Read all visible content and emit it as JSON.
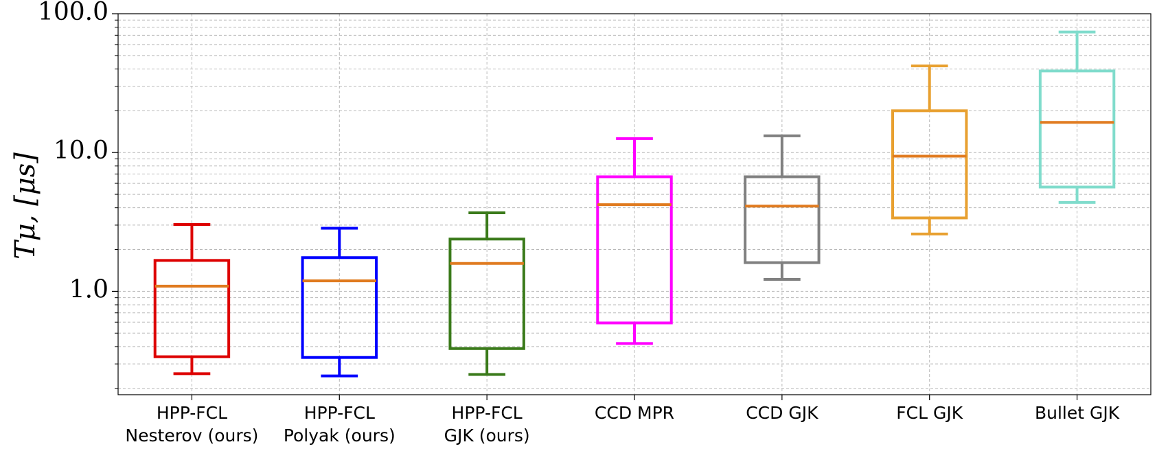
{
  "chart_data": {
    "type": "box",
    "ylabel": "Tμ, [μs]",
    "categories": [
      "HPP-FCL\nNesterov (ours)",
      "HPP-FCL\nPolyak (ours)",
      "HPP-FCL\nGJK (ours)",
      "CCD MPR",
      "CCD GJK",
      "FCL GJK",
      "Bullet GJK"
    ],
    "colors": [
      "#dd0000",
      "#0000ff",
      "#3a7a1a",
      "#ff00ff",
      "#808080",
      "#e8a030",
      "#80dccc"
    ],
    "median_color": "#e07b20",
    "whisker_low": [
      0.255,
      0.246,
      0.252,
      0.421,
      1.22,
      2.59,
      4.37
    ],
    "q1": [
      0.338,
      0.334,
      0.387,
      0.592,
      1.61,
      3.38,
      5.64
    ],
    "median": [
      1.09,
      1.19,
      1.59,
      4.21,
      4.11,
      9.41,
      16.5
    ],
    "q3": [
      1.67,
      1.75,
      2.38,
      6.69,
      6.69,
      20.0,
      38.7
    ],
    "whisker_high": [
      3.03,
      2.85,
      3.68,
      12.6,
      13.2,
      42.1,
      73.8
    ],
    "ylim": [
      0.18,
      100
    ],
    "yticks": [
      {
        "value": 1,
        "label": "1.0"
      },
      {
        "value": 10,
        "label": "10.0"
      },
      {
        "value": 100,
        "label": "100.0"
      }
    ],
    "log_y": true,
    "grid": true,
    "minor_grid": true
  }
}
